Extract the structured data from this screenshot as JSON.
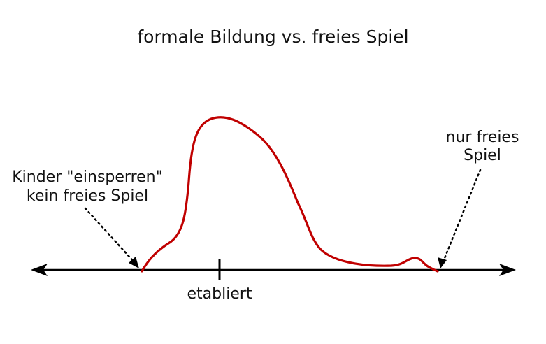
{
  "title": "formale Bildung vs. freies Spiel",
  "labels": {
    "left_line1": "Kinder \"einsperren\"",
    "left_line2": "kein freies Spiel",
    "right_line1": "nur freies",
    "right_line2": "Spiel",
    "axis_mark": "etabliert"
  },
  "colors": {
    "curve": "#c00000",
    "axis": "#000000",
    "text": "#111111"
  }
}
